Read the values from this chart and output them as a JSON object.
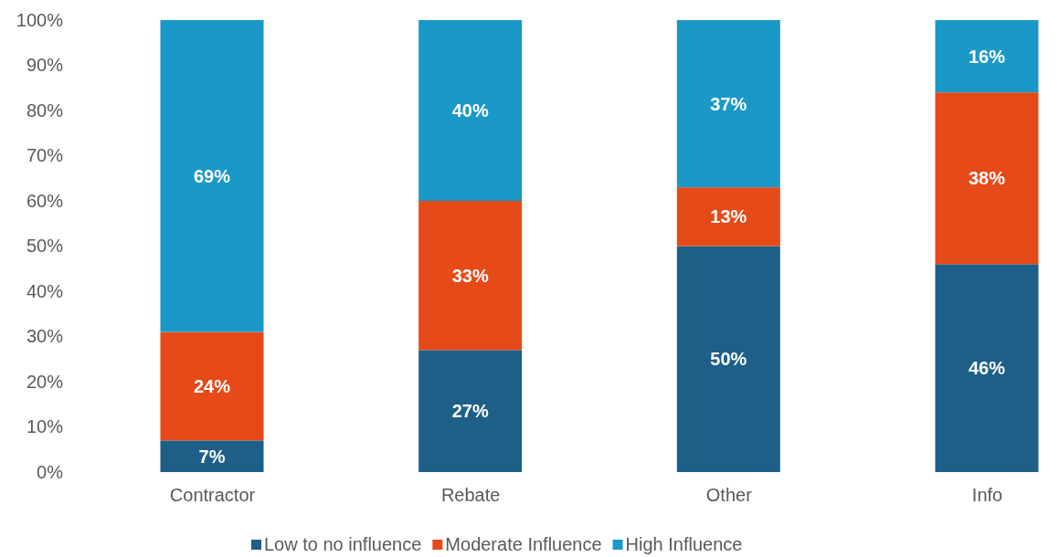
{
  "chart_data": {
    "type": "bar",
    "stacked": true,
    "categories": [
      "Contractor",
      "Rebate",
      "Other",
      "Info"
    ],
    "series": [
      {
        "name": "Low to no influence",
        "color": "#1e5f88",
        "values": [
          7,
          27,
          50,
          46
        ]
      },
      {
        "name": "Moderate Influence",
        "color": "#e64a19",
        "values": [
          24,
          33,
          13,
          38
        ]
      },
      {
        "name": "High Influence",
        "color": "#1a98c8",
        "values": [
          69,
          40,
          37,
          16
        ]
      }
    ],
    "ylim": [
      0,
      100
    ],
    "yticks": [
      {
        "value": 0,
        "label": "0%"
      },
      {
        "value": 10,
        "label": "10%"
      },
      {
        "value": 20,
        "label": "20%"
      },
      {
        "value": 30,
        "label": "30%"
      },
      {
        "value": 40,
        "label": "40%"
      },
      {
        "value": 50,
        "label": "50%"
      },
      {
        "value": 60,
        "label": "60%"
      },
      {
        "value": 70,
        "label": "70%"
      },
      {
        "value": 80,
        "label": "80%"
      },
      {
        "value": 90,
        "label": "90%"
      },
      {
        "value": 100,
        "label": "100%"
      }
    ],
    "value_labels": [
      [
        "7%",
        "27%",
        "50%",
        "46%"
      ],
      [
        "24%",
        "33%",
        "13%",
        "38%"
      ],
      [
        "69%",
        "40%",
        "37%",
        "16%"
      ]
    ],
    "legend": "bottom",
    "grid": false
  }
}
